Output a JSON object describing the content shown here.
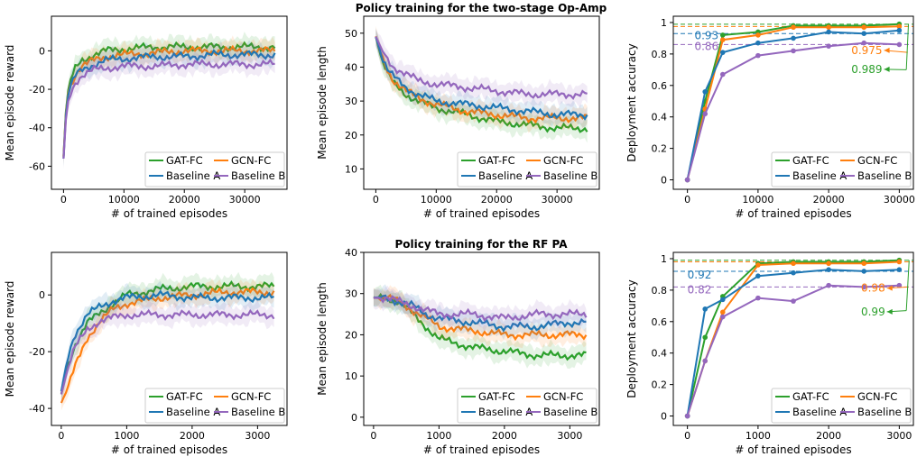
{
  "colors": {
    "gat": "#2ca02c",
    "gcn": "#ff7f0e",
    "baseA": "#1f77b4",
    "baseB": "#9467bd"
  },
  "titles": {
    "top": "Policy training for the two-stage Op-Amp",
    "bottom": "Policy training for the RF PA"
  },
  "chart_data": [
    {
      "id": "opamp-reward",
      "type": "line",
      "xlabel": "# of trained episodes",
      "ylabel": "Mean episode reward",
      "xlim": [
        -2000,
        37000
      ],
      "ylim": [
        -72,
        18
      ],
      "xticks": [
        0,
        10000,
        20000,
        30000
      ],
      "yticks": [
        -60,
        -40,
        -20,
        0
      ],
      "legend": [
        "GAT-FC",
        "GCN-FC",
        "Baseline A",
        "Baseline B"
      ],
      "legend_position": "bottom-right",
      "band": true,
      "series": [
        {
          "name": "GAT-FC",
          "color": "#2ca02c",
          "x": [
            0,
            500,
            1000,
            2000,
            3000,
            5000,
            7000,
            10000,
            15000,
            20000,
            25000,
            30000,
            35000
          ],
          "y": [
            -55,
            -25,
            -17,
            -9,
            -5,
            -2,
            0,
            1,
            2,
            2,
            2,
            2,
            2
          ]
        },
        {
          "name": "GCN-FC",
          "color": "#ff7f0e",
          "x": [
            0,
            500,
            1000,
            2000,
            3000,
            5000,
            7000,
            10000,
            15000,
            20000,
            25000,
            30000,
            35000
          ],
          "y": [
            -55,
            -26,
            -19,
            -12,
            -8,
            -5,
            -3,
            -2,
            -1,
            0,
            0,
            0,
            0
          ]
        },
        {
          "name": "Baseline A",
          "color": "#1f77b4",
          "x": [
            0,
            500,
            1000,
            2000,
            3000,
            5000,
            7000,
            10000,
            15000,
            20000,
            25000,
            30000,
            35000
          ],
          "y": [
            -56,
            -27,
            -20,
            -13,
            -10,
            -7,
            -5,
            -4,
            -3,
            -3,
            -2,
            -2,
            -2
          ]
        },
        {
          "name": "Baseline B",
          "color": "#9467bd",
          "x": [
            0,
            500,
            1000,
            2000,
            3000,
            5000,
            7000,
            10000,
            15000,
            20000,
            25000,
            30000,
            35000
          ],
          "y": [
            -56,
            -30,
            -23,
            -16,
            -13,
            -10,
            -9,
            -8,
            -8,
            -7,
            -7,
            -7,
            -7
          ]
        }
      ]
    },
    {
      "id": "opamp-length",
      "type": "line",
      "xlabel": "# of trained episodes",
      "ylabel": "Mean episode length",
      "xlim": [
        -2000,
        37000
      ],
      "ylim": [
        4,
        55
      ],
      "xticks": [
        0,
        10000,
        20000,
        30000
      ],
      "yticks": [
        10,
        20,
        30,
        40,
        50
      ],
      "legend": [
        "GAT-FC",
        "GCN-FC",
        "Baseline A",
        "Baseline B"
      ],
      "legend_position": "bottom-right",
      "band": true,
      "series": [
        {
          "name": "GAT-FC",
          "color": "#2ca02c",
          "x": [
            0,
            1000,
            2000,
            3000,
            5000,
            7000,
            10000,
            15000,
            20000,
            25000,
            30000,
            35000
          ],
          "y": [
            49,
            42,
            38,
            35,
            32,
            30,
            28,
            26,
            24,
            23,
            22,
            22
          ]
        },
        {
          "name": "GCN-FC",
          "color": "#ff7f0e",
          "x": [
            0,
            1000,
            2000,
            3000,
            5000,
            7000,
            10000,
            15000,
            20000,
            25000,
            30000,
            35000
          ],
          "y": [
            49,
            43,
            39,
            36,
            33,
            31,
            29,
            27,
            26,
            25,
            25,
            25
          ]
        },
        {
          "name": "Baseline A",
          "color": "#1f77b4",
          "x": [
            0,
            1000,
            2000,
            3000,
            5000,
            7000,
            10000,
            15000,
            20000,
            25000,
            30000,
            35000
          ],
          "y": [
            49,
            43,
            39,
            37,
            34,
            32,
            30,
            29,
            28,
            27,
            26,
            26
          ]
        },
        {
          "name": "Baseline B",
          "color": "#9467bd",
          "x": [
            0,
            1000,
            2000,
            3000,
            5000,
            7000,
            10000,
            15000,
            20000,
            25000,
            30000,
            35000
          ],
          "y": [
            49,
            45,
            42,
            40,
            38,
            36,
            35,
            34,
            33,
            32,
            32,
            32
          ]
        }
      ]
    },
    {
      "id": "opamp-accuracy",
      "type": "line",
      "xlabel": "# of trained episodes",
      "ylabel": "Deployment accuracy",
      "xlim": [
        -2000,
        32000
      ],
      "ylim": [
        -0.06,
        1.04
      ],
      "xticks": [
        0,
        10000,
        20000,
        30000
      ],
      "yticks": [
        0.0,
        0.2,
        0.4,
        0.6,
        0.8,
        1.0
      ],
      "legend": [
        "GAT-FC",
        "GCN-FC",
        "Baseline A",
        "Baseline B"
      ],
      "legend_position": "bottom-right",
      "markers": true,
      "hlines": [
        {
          "y": 0.989,
          "color": "#2ca02c"
        },
        {
          "y": 0.975,
          "color": "#ff7f0e"
        },
        {
          "y": 0.93,
          "color": "#1f77b4"
        },
        {
          "y": 0.86,
          "color": "#9467bd"
        }
      ],
      "annotations": [
        {
          "text": "0.93",
          "color": "#1f77b4",
          "x": 1000,
          "y": 0.895,
          "anchor": "start"
        },
        {
          "text": "0.86",
          "color": "#9467bd",
          "x": 1000,
          "y": 0.825,
          "anchor": "start"
        },
        {
          "text": "0.975",
          "color": "#ff7f0e",
          "x": 27600,
          "y": 0.8,
          "anchor": "end",
          "arrow_to": [
            31200,
            0.81
          ]
        },
        {
          "text": "0.989",
          "color": "#2ca02c",
          "x": 27600,
          "y": 0.68,
          "anchor": "end",
          "arrow_to": [
            31000,
            0.7
          ],
          "arrow_from_point": [
            31300,
            0.99
          ]
        }
      ],
      "series": [
        {
          "name": "GAT-FC",
          "color": "#2ca02c",
          "x": [
            0,
            2500,
            5000,
            10000,
            15000,
            20000,
            25000,
            30000
          ],
          "y": [
            0.0,
            0.5,
            0.92,
            0.94,
            0.98,
            0.98,
            0.98,
            0.99
          ]
        },
        {
          "name": "GCN-FC",
          "color": "#ff7f0e",
          "x": [
            0,
            2500,
            5000,
            10000,
            15000,
            20000,
            25000,
            30000
          ],
          "y": [
            0.0,
            0.45,
            0.89,
            0.92,
            0.97,
            0.97,
            0.97,
            0.975
          ]
        },
        {
          "name": "Baseline A",
          "color": "#1f77b4",
          "x": [
            0,
            2500,
            5000,
            10000,
            15000,
            20000,
            25000,
            30000
          ],
          "y": [
            0.0,
            0.56,
            0.81,
            0.87,
            0.9,
            0.94,
            0.93,
            0.95
          ]
        },
        {
          "name": "Baseline B",
          "color": "#9467bd",
          "x": [
            0,
            2500,
            5000,
            10000,
            15000,
            20000,
            25000,
            30000
          ],
          "y": [
            0.0,
            0.42,
            0.67,
            0.79,
            0.82,
            0.85,
            0.87,
            0.86
          ]
        }
      ]
    },
    {
      "id": "rfpa-reward",
      "type": "line",
      "xlabel": "# of trained episodes",
      "ylabel": "Mean episode reward",
      "xlim": [
        -150,
        3450
      ],
      "ylim": [
        -46,
        15
      ],
      "xticks": [
        0,
        1000,
        2000,
        3000
      ],
      "yticks": [
        -40,
        -20,
        0
      ],
      "legend": [
        "GAT-FC",
        "GCN-FC",
        "Baseline A",
        "Baseline B"
      ],
      "legend_position": "bottom-right",
      "band": true,
      "series": [
        {
          "name": "GAT-FC",
          "color": "#2ca02c",
          "x": [
            0,
            100,
            200,
            400,
            600,
            800,
            1000,
            1500,
            2000,
            2500,
            3000,
            3250
          ],
          "y": [
            -35,
            -25,
            -18,
            -10,
            -6,
            -3,
            0,
            2,
            3,
            3,
            3,
            3
          ]
        },
        {
          "name": "GCN-FC",
          "color": "#ff7f0e",
          "x": [
            0,
            100,
            200,
            400,
            600,
            800,
            1000,
            1500,
            2000,
            2500,
            3000,
            3250
          ],
          "y": [
            -38,
            -33,
            -26,
            -15,
            -9,
            -5,
            -3,
            -1,
            0,
            1,
            1,
            1
          ]
        },
        {
          "name": "Baseline A",
          "color": "#1f77b4",
          "x": [
            0,
            100,
            200,
            400,
            600,
            800,
            1000,
            1500,
            2000,
            2500,
            3000,
            3250
          ],
          "y": [
            -34,
            -22,
            -14,
            -7,
            -4,
            -2,
            -1,
            0,
            -1,
            -1,
            -1,
            -1
          ]
        },
        {
          "name": "Baseline B",
          "color": "#9467bd",
          "x": [
            0,
            100,
            200,
            400,
            600,
            800,
            1000,
            1500,
            2000,
            2500,
            3000,
            3250
          ],
          "y": [
            -35,
            -26,
            -19,
            -12,
            -9,
            -8,
            -7,
            -7,
            -7,
            -7,
            -7,
            -7
          ]
        }
      ]
    },
    {
      "id": "rfpa-length",
      "type": "line",
      "title": "Policy training for the RF PA",
      "xlabel": "# of trained episodes",
      "ylabel": "Mean episode length",
      "xlim": [
        -150,
        3450
      ],
      "ylim": [
        -2,
        40
      ],
      "xticks": [
        0,
        1000,
        2000,
        3000
      ],
      "yticks": [
        0,
        10,
        20,
        30,
        40
      ],
      "legend": [
        "GAT-FC",
        "GCN-FC",
        "Baseline A",
        "Baseline B"
      ],
      "legend_position": "bottom-right",
      "band": true,
      "series": [
        {
          "name": "GAT-FC",
          "color": "#2ca02c",
          "x": [
            0,
            200,
            400,
            600,
            800,
            1000,
            1500,
            2000,
            2500,
            3000,
            3250
          ],
          "y": [
            29,
            29,
            28,
            25,
            22,
            19,
            17,
            16,
            15,
            15,
            15
          ]
        },
        {
          "name": "GCN-FC",
          "color": "#ff7f0e",
          "x": [
            0,
            200,
            400,
            600,
            800,
            1000,
            1500,
            2000,
            2500,
            3000,
            3250
          ],
          "y": [
            29,
            29,
            28,
            26,
            24,
            22,
            21,
            20,
            20,
            20,
            20
          ]
        },
        {
          "name": "Baseline A",
          "color": "#1f77b4",
          "x": [
            0,
            200,
            400,
            600,
            800,
            1000,
            1500,
            2000,
            2500,
            3000,
            3250
          ],
          "y": [
            29,
            29,
            28,
            27,
            25,
            24,
            23,
            22,
            22,
            23,
            23
          ]
        },
        {
          "name": "Baseline B",
          "color": "#9467bd",
          "x": [
            0,
            200,
            400,
            600,
            800,
            1000,
            1500,
            2000,
            2500,
            3000,
            3250
          ],
          "y": [
            29,
            29,
            28,
            27,
            26,
            25,
            25,
            24,
            25,
            25,
            25
          ]
        }
      ]
    },
    {
      "id": "rfpa-accuracy",
      "type": "line",
      "xlabel": "# of trained episodes",
      "ylabel": "Deployment accuracy",
      "xlim": [
        -200,
        3200
      ],
      "ylim": [
        -0.06,
        1.04
      ],
      "xticks": [
        0,
        1000,
        2000,
        3000
      ],
      "yticks": [
        0.0,
        0.2,
        0.4,
        0.6,
        0.8,
        1.0
      ],
      "legend": [
        "GAT-FC",
        "GCN-FC",
        "Baseline A",
        "Baseline B"
      ],
      "legend_position": "bottom-right",
      "markers": true,
      "hlines": [
        {
          "y": 0.99,
          "color": "#2ca02c"
        },
        {
          "y": 0.98,
          "color": "#ff7f0e"
        },
        {
          "y": 0.92,
          "color": "#1f77b4"
        },
        {
          "y": 0.82,
          "color": "#9467bd"
        }
      ],
      "annotations": [
        {
          "text": "0.92",
          "color": "#1f77b4",
          "x": 0,
          "y": 0.875,
          "anchor": "start"
        },
        {
          "text": "0.82",
          "color": "#9467bd",
          "x": 0,
          "y": 0.78,
          "anchor": "start"
        },
        {
          "text": "0.98",
          "color": "#ff7f0e",
          "x": 2800,
          "y": 0.79,
          "anchor": "end",
          "arrow_to": [
            3130,
            0.82
          ]
        },
        {
          "text": "0.99",
          "color": "#2ca02c",
          "x": 2800,
          "y": 0.64,
          "anchor": "end",
          "arrow_to": [
            3100,
            0.67
          ],
          "arrow_from_point": [
            3140,
            0.99
          ]
        }
      ],
      "series": [
        {
          "name": "GAT-FC",
          "color": "#2ca02c",
          "x": [
            0,
            250,
            500,
            1000,
            1500,
            2000,
            2500,
            3000
          ],
          "y": [
            0.0,
            0.5,
            0.76,
            0.97,
            0.98,
            0.98,
            0.98,
            0.99
          ]
        },
        {
          "name": "GCN-FC",
          "color": "#ff7f0e",
          "x": [
            0,
            250,
            500,
            1000,
            1500,
            2000,
            2500,
            3000
          ],
          "y": [
            0.0,
            0.35,
            0.66,
            0.96,
            0.97,
            0.97,
            0.97,
            0.98
          ]
        },
        {
          "name": "Baseline A",
          "color": "#1f77b4",
          "x": [
            0,
            250,
            500,
            1000,
            1500,
            2000,
            2500,
            3000
          ],
          "y": [
            0.0,
            0.68,
            0.74,
            0.89,
            0.91,
            0.93,
            0.92,
            0.93
          ]
        },
        {
          "name": "Baseline B",
          "color": "#9467bd",
          "x": [
            0,
            250,
            500,
            1000,
            1500,
            2000,
            2500,
            3000
          ],
          "y": [
            0.0,
            0.35,
            0.63,
            0.75,
            0.73,
            0.83,
            0.82,
            0.83
          ]
        }
      ]
    }
  ]
}
